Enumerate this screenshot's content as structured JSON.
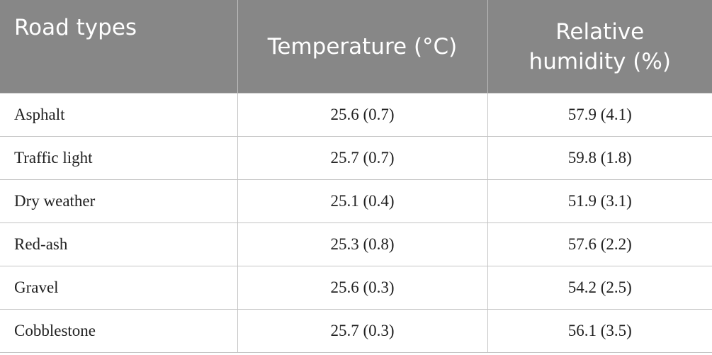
{
  "table": {
    "header": [
      "Road types",
      "Temperature (°C)",
      "Relative humidity (%)"
    ],
    "rows": [
      [
        "Asphalt",
        "25.6 (0.7)",
        "57.9 (4.1)"
      ],
      [
        "Traffic light",
        "25.7 (0.7)",
        "59.8 (1.8)"
      ],
      [
        "Dry weather",
        "25.1 (0.4)",
        "51.9 (3.1)"
      ],
      [
        "Red-ash",
        "25.3 (0.8)",
        "57.6 (2.2)"
      ],
      [
        "Gravel",
        "25.6 (0.3)",
        "54.2 (2.5)"
      ],
      [
        "Cobblestone",
        "25.7 (0.3)",
        "56.1 (3.5)"
      ]
    ]
  }
}
